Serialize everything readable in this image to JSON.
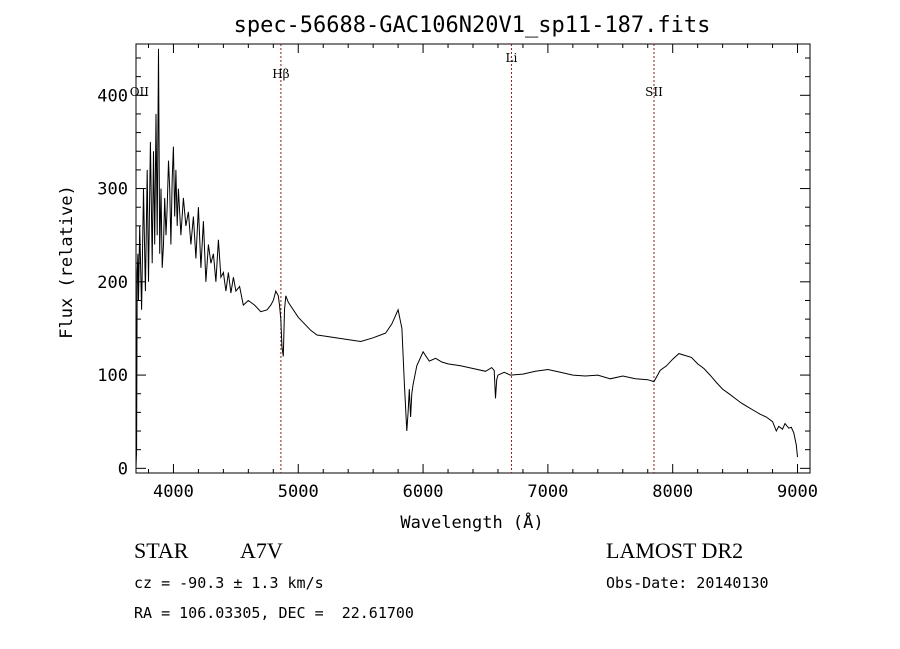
{
  "chart_data": {
    "type": "line",
    "title": "spec-56688-GAC106N20V1_sp11-187.fits",
    "xlabel": "Wavelength (Å)",
    "ylabel": "Flux (relative)",
    "xlim": [
      3700,
      9100
    ],
    "ylim": [
      -5,
      455
    ],
    "x_ticks": [
      4000,
      5000,
      6000,
      7000,
      8000,
      9000
    ],
    "y_ticks": [
      0,
      100,
      200,
      300,
      400
    ],
    "grid": false,
    "lines": [
      {
        "label": "OII",
        "x": 3727
      },
      {
        "label": "Hβ",
        "x": 4861
      },
      {
        "label": "Li",
        "x": 6708
      },
      {
        "label": "SII",
        "x": 7850
      }
    ],
    "series": [
      {
        "x": [
          3700,
          3705,
          3710,
          3715,
          3720,
          3730,
          3745,
          3760,
          3775,
          3790,
          3800,
          3815,
          3830,
          3840,
          3850,
          3860,
          3870,
          3880,
          3890,
          3900,
          3910,
          3920,
          3930,
          3940,
          3950,
          3960,
          3970,
          3980,
          3990,
          4000,
          4010,
          4020,
          4030,
          4040,
          4060,
          4080,
          4100,
          4120,
          4140,
          4160,
          4180,
          4200,
          4220,
          4240,
          4260,
          4280,
          4300,
          4320,
          4340,
          4360,
          4380,
          4400,
          4420,
          4440,
          4460,
          4480,
          4500,
          4530,
          4560,
          4600,
          4650,
          4700,
          4750,
          4780,
          4800,
          4820,
          4840,
          4850,
          4860,
          4870,
          4880,
          4890,
          4900,
          4920,
          4950,
          5000,
          5050,
          5100,
          5150,
          5200,
          5300,
          5400,
          5500,
          5600,
          5700,
          5750,
          5800,
          5830,
          5850,
          5870,
          5880,
          5890,
          5900,
          5910,
          5920,
          5950,
          6000,
          6050,
          6100,
          6150,
          6200,
          6300,
          6400,
          6500,
          6550,
          6570,
          6580,
          6590,
          6600,
          6650,
          6700,
          6800,
          6900,
          7000,
          7100,
          7200,
          7300,
          7400,
          7500,
          7600,
          7700,
          7800,
          7850,
          7900,
          7950,
          8000,
          8050,
          8100,
          8150,
          8200,
          8250,
          8300,
          8350,
          8400,
          8450,
          8500,
          8550,
          8600,
          8650,
          8700,
          8750,
          8800,
          8830,
          8850,
          8880,
          8900,
          8930,
          8950,
          8970,
          8990,
          9000
        ],
        "y": [
          0,
          20,
          210,
          230,
          180,
          260,
          170,
          300,
          190,
          320,
          200,
          350,
          220,
          340,
          240,
          380,
          250,
          450,
          230,
          300,
          215,
          240,
          290,
          250,
          280,
          330,
          300,
          240,
          310,
          345,
          270,
          320,
          260,
          300,
          250,
          290,
          260,
          275,
          240,
          270,
          225,
          280,
          215,
          265,
          200,
          240,
          220,
          230,
          200,
          245,
          205,
          210,
          190,
          210,
          188,
          205,
          190,
          195,
          175,
          180,
          175,
          168,
          170,
          175,
          180,
          190,
          185,
          175,
          160,
          130,
          120,
          170,
          185,
          178,
          172,
          162,
          155,
          148,
          143,
          142,
          140,
          138,
          136,
          140,
          145,
          155,
          170,
          150,
          90,
          40,
          60,
          85,
          55,
          80,
          90,
          110,
          125,
          115,
          118,
          114,
          112,
          110,
          107,
          104,
          108,
          105,
          75,
          95,
          100,
          103,
          100,
          101,
          104,
          106,
          103,
          100,
          99,
          100,
          96,
          99,
          96,
          95,
          93,
          105,
          110,
          117,
          123,
          121,
          119,
          112,
          107,
          100,
          92,
          85,
          80,
          75,
          70,
          66,
          62,
          58,
          55,
          50,
          40,
          45,
          42,
          48,
          43,
          44,
          38,
          25,
          12
        ]
      }
    ]
  },
  "info": {
    "object_class": "STAR",
    "subclass": "A7V",
    "survey": "LAMOST DR2",
    "redshift": "cz = -90.3 ± 1.3 km/s",
    "obs_date": "Obs-Date: 20140130",
    "coords": "RA = 106.03305, DEC =  22.61700"
  }
}
